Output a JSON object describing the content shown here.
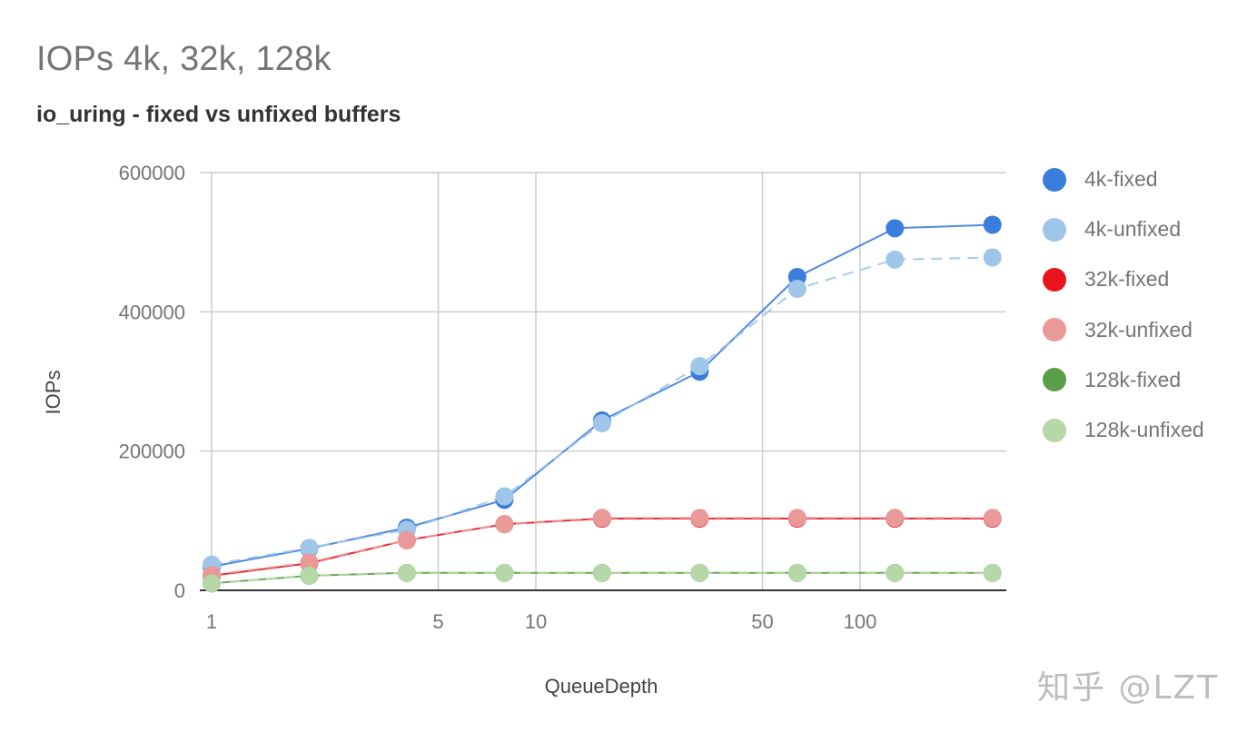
{
  "chart_data": {
    "type": "line",
    "title": "IOPs 4k, 32k, 128k",
    "subtitle": "io_uring - fixed vs unfixed buffers",
    "xlabel": "QueueDepth",
    "ylabel": "IOPs",
    "x_scale": "log",
    "x": [
      1,
      2,
      4,
      8,
      16,
      32,
      64,
      128,
      256
    ],
    "x_ticks": [
      "1",
      "5",
      "10",
      "50",
      "100"
    ],
    "y_ticks": [
      "0",
      "200000",
      "400000",
      "600000"
    ],
    "ylim": [
      0,
      600000
    ],
    "grid": true,
    "legend_position": "right",
    "series": [
      {
        "name": "4k-fixed",
        "color": "#3b7ddd",
        "dashed": false,
        "values": [
          34000,
          60000,
          90000,
          130000,
          244000,
          314000,
          450000,
          520000,
          525000
        ]
      },
      {
        "name": "4k-unfixed",
        "color": "#9fc5e8",
        "dashed": true,
        "values": [
          37000,
          61000,
          87000,
          135000,
          240000,
          322000,
          433000,
          475000,
          478000
        ]
      },
      {
        "name": "32k-fixed",
        "color": "#e8141e",
        "dashed": false,
        "values": [
          21000,
          39000,
          72000,
          95000,
          103000,
          103000,
          103000,
          103000,
          103000
        ]
      },
      {
        "name": "32k-unfixed",
        "color": "#ea9999",
        "dashed": true,
        "values": [
          22000,
          40000,
          72000,
          95000,
          104000,
          104000,
          104000,
          104000,
          104000
        ]
      },
      {
        "name": "128k-fixed",
        "color": "#5a9e47",
        "dashed": false,
        "values": [
          10000,
          21000,
          25000,
          25000,
          25000,
          25000,
          25000,
          25000,
          25000
        ]
      },
      {
        "name": "128k-unfixed",
        "color": "#b6d7a8",
        "dashed": true,
        "values": [
          10000,
          21000,
          25000,
          25000,
          25000,
          25000,
          25000,
          25000,
          25000
        ]
      }
    ]
  },
  "watermark": "知乎 @LZT"
}
